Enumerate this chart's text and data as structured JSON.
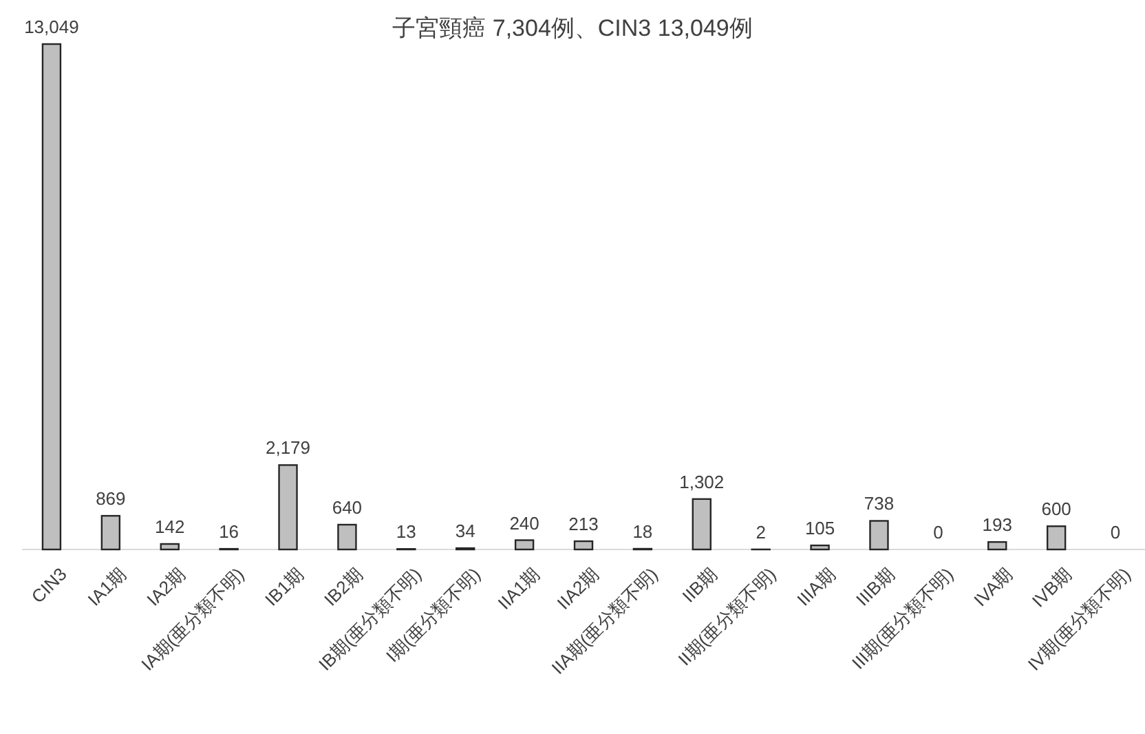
{
  "chart_data": {
    "type": "bar",
    "title": "子宮頸癌 7,304例、CIN3 13,049例",
    "categories": [
      "CIN3",
      "IA1期",
      "IA2期",
      "IA期(亜分類不明)",
      "IB1期",
      "IB2期",
      "IB期(亜分類不明)",
      "I期(亜分類不明)",
      "IIA1期",
      "IIA2期",
      "IIA期(亜分類不明)",
      "IIB期",
      "II期(亜分類不明)",
      "IIIA期",
      "IIIB期",
      "III期(亜分類不明)",
      "IVA期",
      "IVB期",
      "IV期(亜分類不明)"
    ],
    "values": [
      13049,
      869,
      142,
      16,
      2179,
      640,
      13,
      34,
      240,
      213,
      18,
      1302,
      2,
      105,
      738,
      0,
      193,
      600,
      0
    ],
    "color": "#bfbfbf",
    "value_labels": [
      "13,049",
      "869",
      "142",
      "16",
      "2,179",
      "640",
      "13",
      "34",
      "240",
      "213",
      "18",
      "1,302",
      "2",
      "105",
      "738",
      "0",
      "193",
      "600",
      "0"
    ]
  }
}
